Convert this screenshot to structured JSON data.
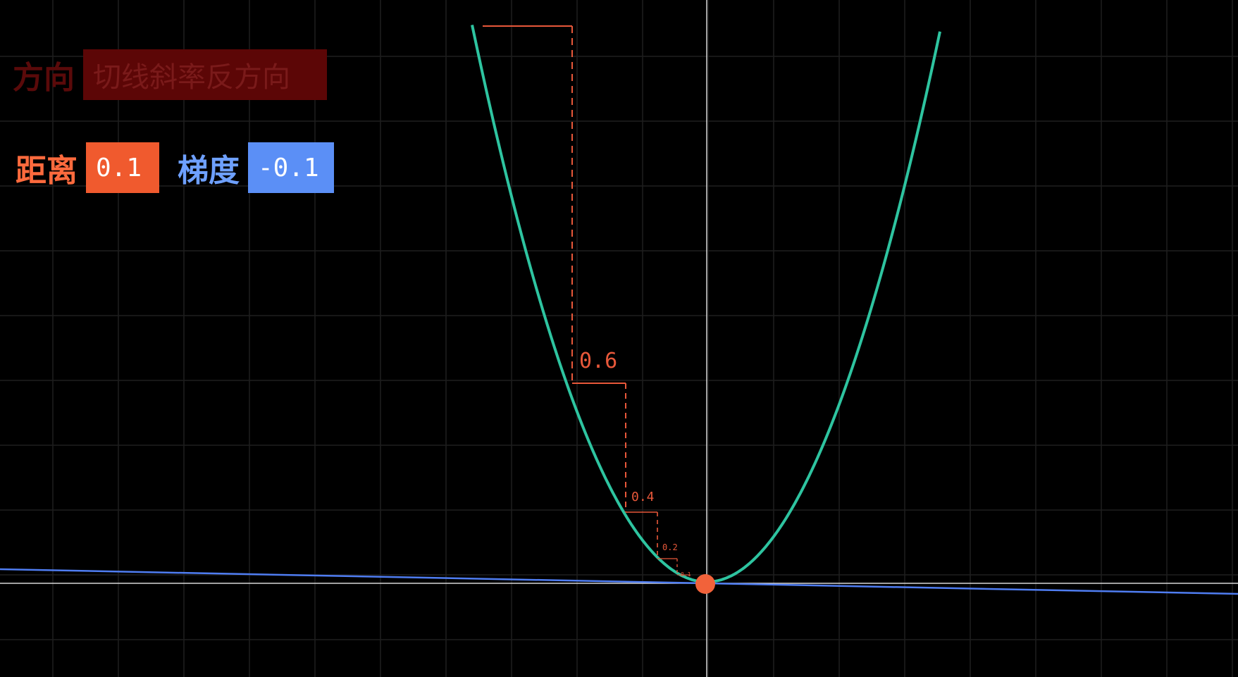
{
  "direction": {
    "label": "方向",
    "value": "切线斜率反方向"
  },
  "distance": {
    "label": "距离",
    "value": "0.1"
  },
  "gradient": {
    "label": "梯度",
    "value": "-0.1"
  },
  "step_labels": [
    "0.6",
    "0.4",
    "0.2",
    "0.1"
  ],
  "colors": {
    "background": "#000000",
    "grid": "#1f1f1f",
    "axis": "#d8d8d8",
    "curve": "#2ec4a0",
    "tangent": "#4f7df2",
    "steps": "#e8583a",
    "point": "#f2623a",
    "distance_box": "#f05a2e",
    "gradient_box": "#5b8ff6",
    "direction_box": "#5c0606"
  }
}
